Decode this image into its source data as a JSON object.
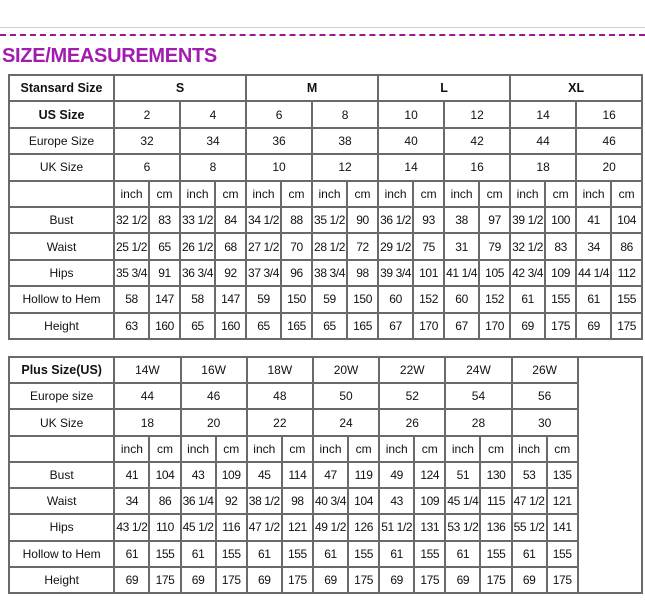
{
  "title": "SIZE/MEASUREMENTS",
  "colors": {
    "title": "#a21caf",
    "dashed_rule": "#a0148f",
    "grid": "#6a6a6a"
  },
  "standard": {
    "header_label": "Stansard Size",
    "groups": [
      "S",
      "M",
      "L",
      "XL"
    ],
    "us_label": "US Size",
    "us_sizes": [
      "2",
      "4",
      "6",
      "8",
      "10",
      "12",
      "14",
      "16"
    ],
    "europe_label": "Europe Size",
    "europe_sizes": [
      "32",
      "34",
      "36",
      "38",
      "40",
      "42",
      "44",
      "46"
    ],
    "uk_label": "UK Size",
    "uk_sizes": [
      "6",
      "8",
      "10",
      "12",
      "14",
      "16",
      "18",
      "20"
    ],
    "units": [
      "inch",
      "cm"
    ],
    "rows": [
      {
        "label": "Bust",
        "values": [
          "32 1/2",
          "83",
          "33 1/2",
          "84",
          "34 1/2",
          "88",
          "35 1/2",
          "90",
          "36 1/2",
          "93",
          "38",
          "97",
          "39 1/2",
          "100",
          "41",
          "104"
        ]
      },
      {
        "label": "Waist",
        "values": [
          "25 1/2",
          "65",
          "26 1/2",
          "68",
          "27 1/2",
          "70",
          "28 1/2",
          "72",
          "29 1/2",
          "75",
          "31",
          "79",
          "32 1/2",
          "83",
          "34",
          "86"
        ]
      },
      {
        "label": "Hips",
        "values": [
          "35 3/4",
          "91",
          "36 3/4",
          "92",
          "37 3/4",
          "96",
          "38 3/4",
          "98",
          "39 3/4",
          "101",
          "41 1/4",
          "105",
          "42 3/4",
          "109",
          "44 1/4",
          "112"
        ]
      },
      {
        "label": "Hollow to Hem",
        "values": [
          "58",
          "147",
          "58",
          "147",
          "59",
          "150",
          "59",
          "150",
          "60",
          "152",
          "60",
          "152",
          "61",
          "155",
          "61",
          "155"
        ]
      },
      {
        "label": "Height",
        "values": [
          "63",
          "160",
          "65",
          "160",
          "65",
          "165",
          "65",
          "165",
          "67",
          "170",
          "67",
          "170",
          "69",
          "175",
          "69",
          "175"
        ]
      }
    ]
  },
  "plus": {
    "header_label": "Plus Size(US)",
    "us_sizes": [
      "14W",
      "16W",
      "18W",
      "20W",
      "22W",
      "24W",
      "26W"
    ],
    "europe_label": "Europe size",
    "europe_sizes": [
      "44",
      "46",
      "48",
      "50",
      "52",
      "54",
      "56"
    ],
    "uk_label": "UK Size",
    "uk_sizes": [
      "18",
      "20",
      "22",
      "24",
      "26",
      "28",
      "30"
    ],
    "units": [
      "inch",
      "cm"
    ],
    "rows": [
      {
        "label": "Bust",
        "values": [
          "41",
          "104",
          "43",
          "109",
          "45",
          "114",
          "47",
          "119",
          "49",
          "124",
          "51",
          "130",
          "53",
          "135"
        ]
      },
      {
        "label": "Waist",
        "values": [
          "34",
          "86",
          "36 1/4",
          "92",
          "38 1/2",
          "98",
          "40 3/4",
          "104",
          "43",
          "109",
          "45 1/4",
          "115",
          "47 1/2",
          "121"
        ]
      },
      {
        "label": "Hips",
        "values": [
          "43 1/2",
          "110",
          "45 1/2",
          "116",
          "47 1/2",
          "121",
          "49 1/2",
          "126",
          "51 1/2",
          "131",
          "53 1/2",
          "136",
          "55 1/2",
          "141"
        ]
      },
      {
        "label": "Hollow to Hem",
        "values": [
          "61",
          "155",
          "61",
          "155",
          "61",
          "155",
          "61",
          "155",
          "61",
          "155",
          "61",
          "155",
          "61",
          "155"
        ]
      },
      {
        "label": "Height",
        "values": [
          "69",
          "175",
          "69",
          "175",
          "69",
          "175",
          "69",
          "175",
          "69",
          "175",
          "69",
          "175",
          "69",
          "175"
        ]
      }
    ]
  }
}
